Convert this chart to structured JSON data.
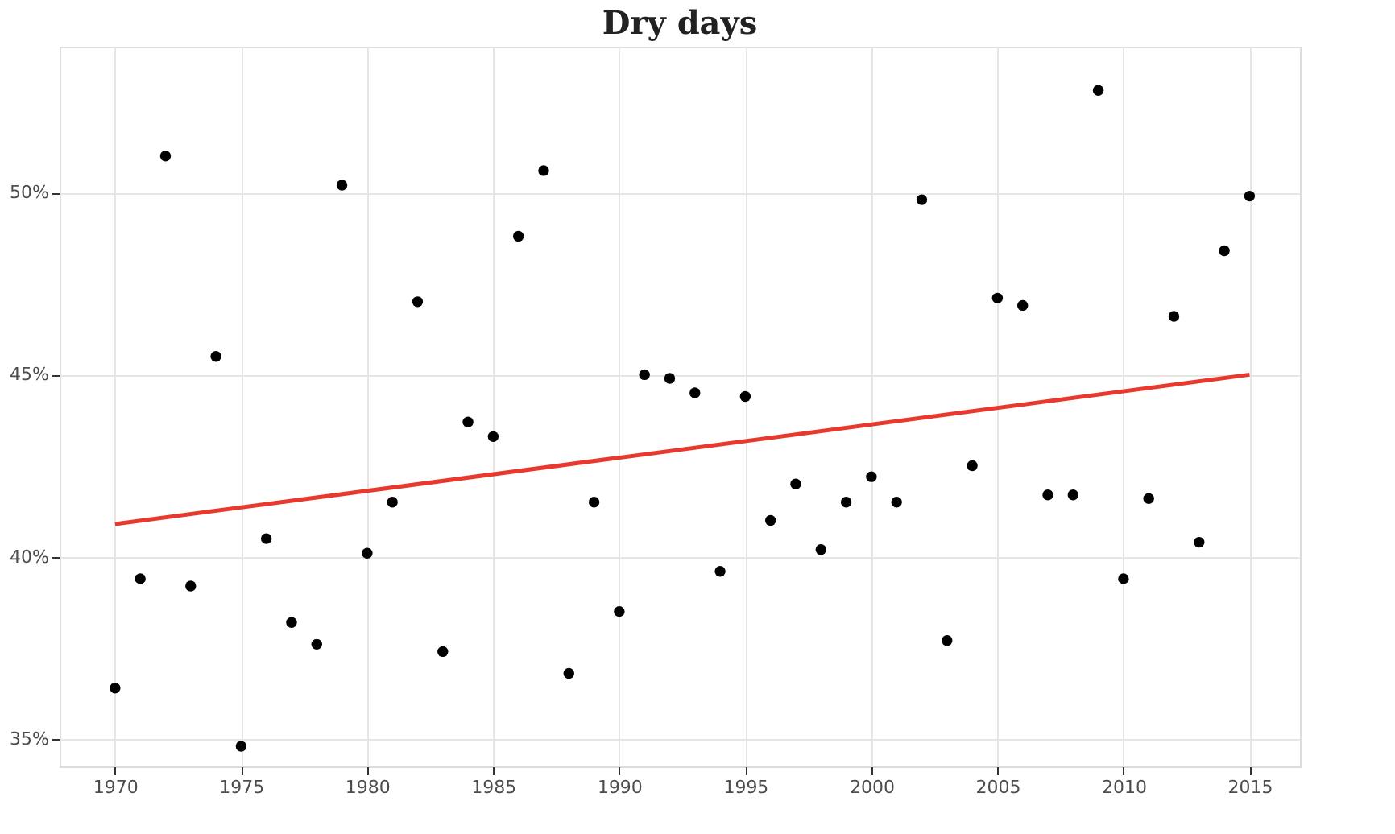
{
  "chart_data": {
    "type": "scatter",
    "title": "Dry days",
    "x": [
      1970,
      1971,
      1972,
      1973,
      1974,
      1975,
      1976,
      1977,
      1978,
      1979,
      1980,
      1981,
      1982,
      1983,
      1984,
      1985,
      1986,
      1987,
      1988,
      1989,
      1990,
      1991,
      1992,
      1993,
      1994,
      1995,
      1996,
      1997,
      1998,
      1999,
      2000,
      2001,
      2002,
      2003,
      2004,
      2005,
      2006,
      2007,
      2008,
      2009,
      2010,
      2011,
      2012,
      2013,
      2014,
      2015
    ],
    "series": [
      {
        "color": "#000000",
        "marker": "circle",
        "values": [
          36.4,
          39.4,
          51.0,
          39.2,
          45.5,
          34.8,
          40.5,
          38.2,
          37.6,
          50.2,
          40.1,
          41.5,
          47.0,
          37.4,
          43.7,
          43.3,
          48.8,
          50.6,
          36.8,
          41.5,
          38.5,
          45.0,
          44.9,
          44.5,
          39.6,
          44.4,
          41.0,
          42.0,
          40.2,
          41.5,
          42.2,
          41.5,
          49.8,
          37.7,
          42.5,
          47.1,
          46.9,
          41.7,
          41.7,
          52.8,
          39.4,
          41.6,
          46.6,
          40.4,
          48.4,
          49.9
        ]
      },
      {
        "type": "line",
        "color": "#e8392e",
        "marker": "none",
        "line_style": "solid",
        "x": [
          1970,
          2015
        ],
        "values": [
          40.9,
          45.0
        ]
      }
    ],
    "xlim": [
      1967.8,
      2017
    ],
    "xticks": [
      1970,
      1975,
      1980,
      1985,
      1990,
      1995,
      2000,
      2005,
      2010,
      2015
    ],
    "ylim": [
      34.25,
      54.0
    ],
    "yticks": [
      {
        "value": 35,
        "label": "35%"
      },
      {
        "value": 40,
        "label": "40%"
      },
      {
        "value": 45,
        "label": "45%"
      },
      {
        "value": 50,
        "label": "50%"
      }
    ],
    "grid": true
  }
}
